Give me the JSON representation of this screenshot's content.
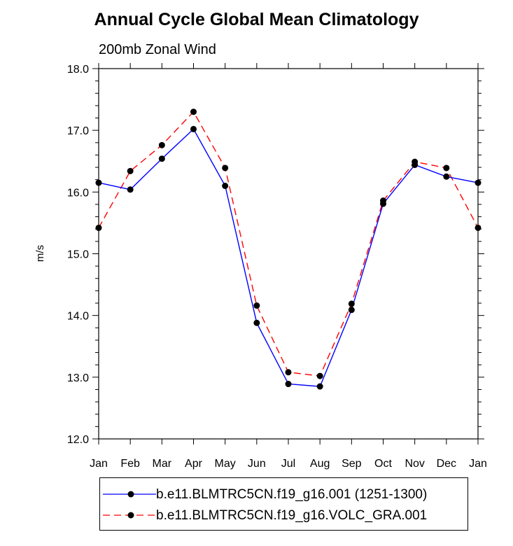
{
  "chart_data": {
    "type": "line",
    "title": "Annual Cycle Global Mean Climatology",
    "subtitle": "200mb Zonal Wind",
    "xlabel": "",
    "ylabel": "m/s",
    "categories": [
      "Jan",
      "Feb",
      "Mar",
      "Apr",
      "May",
      "Jun",
      "Jul",
      "Aug",
      "Sep",
      "Oct",
      "Nov",
      "Dec",
      "Jan"
    ],
    "ylim": [
      12.0,
      18.0
    ],
    "yticks": [
      "12.0",
      "13.0",
      "14.0",
      "15.0",
      "16.0",
      "17.0",
      "18.0"
    ],
    "series": [
      {
        "name": "b.e11.BLMTRC5CN.f19_g16.001 (1251-1300)",
        "color": "#0000ff",
        "dash": "solid",
        "values": [
          16.15,
          16.04,
          16.54,
          17.02,
          16.1,
          13.88,
          12.89,
          12.85,
          14.09,
          15.81,
          16.44,
          16.25,
          16.15
        ]
      },
      {
        "name": "b.e11.BLMTRC5CN.f19_g16.VOLC_GRA.001",
        "color": "#ff0000",
        "dash": "dashed",
        "values": [
          15.42,
          16.34,
          16.76,
          17.3,
          16.39,
          14.16,
          13.08,
          13.02,
          14.19,
          15.86,
          16.49,
          16.39,
          15.42
        ]
      }
    ],
    "marker_color": "#000000",
    "grid": false,
    "legend_position": "bottom"
  }
}
